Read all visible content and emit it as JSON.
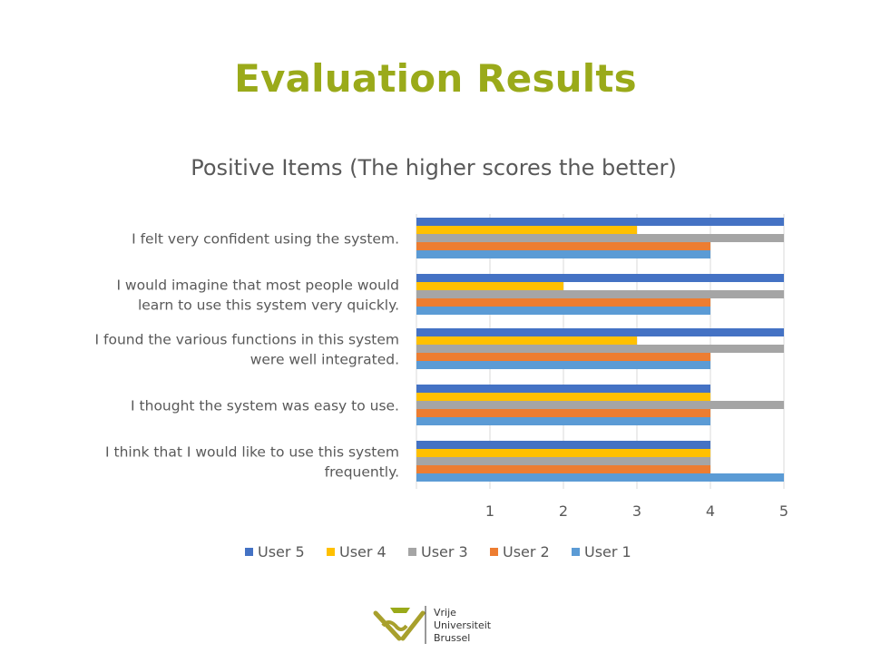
{
  "slide": {
    "title": "Evaluation Results"
  },
  "logo": {
    "line1": "Vrije",
    "line2": "Universiteit",
    "line3": "Brussel"
  },
  "colors": {
    "title": "#9aaa1a",
    "user5": "#4472c4",
    "user4": "#ffc000",
    "user3": "#a5a5a5",
    "user2": "#ed7d31",
    "user1": "#5b9bd5"
  },
  "chart_data": {
    "type": "bar",
    "orientation": "horizontal",
    "title": "Positive Items (The higher scores the better)",
    "categories": [
      [
        "I felt very confident using the system."
      ],
      [
        "I would imagine that most people would",
        "learn to use this system very quickly."
      ],
      [
        "I found the various functions in this system",
        "were well integrated."
      ],
      [
        "I thought the system was easy to use."
      ],
      [
        "I think that I would like to use this system",
        "frequently."
      ]
    ],
    "series": [
      {
        "name": "User 5",
        "color": "#4472c4",
        "values": [
          5,
          5,
          5,
          4,
          4
        ]
      },
      {
        "name": "User 4",
        "color": "#ffc000",
        "values": [
          3,
          2,
          3,
          4,
          4
        ]
      },
      {
        "name": "User 3",
        "color": "#a5a5a5",
        "values": [
          5,
          5,
          5,
          5,
          4
        ]
      },
      {
        "name": "User 2",
        "color": "#ed7d31",
        "values": [
          4,
          4,
          4,
          4,
          4
        ]
      },
      {
        "name": "User 1",
        "color": "#5b9bd5",
        "values": [
          4,
          4,
          4,
          4,
          5
        ]
      }
    ],
    "xlim": [
      0,
      5
    ],
    "xticks": [
      "1",
      "2",
      "3",
      "4",
      "5"
    ],
    "grid": true,
    "legend_position": "bottom"
  }
}
